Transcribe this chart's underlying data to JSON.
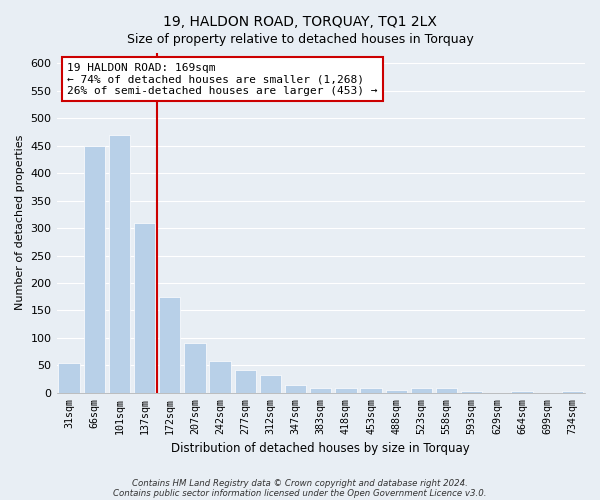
{
  "title": "19, HALDON ROAD, TORQUAY, TQ1 2LX",
  "subtitle": "Size of property relative to detached houses in Torquay",
  "xlabel": "Distribution of detached houses by size in Torquay",
  "ylabel": "Number of detached properties",
  "bar_labels": [
    "31sqm",
    "66sqm",
    "101sqm",
    "137sqm",
    "172sqm",
    "207sqm",
    "242sqm",
    "277sqm",
    "312sqm",
    "347sqm",
    "383sqm",
    "418sqm",
    "453sqm",
    "488sqm",
    "523sqm",
    "558sqm",
    "593sqm",
    "629sqm",
    "664sqm",
    "699sqm",
    "734sqm"
  ],
  "bar_values": [
    55,
    450,
    470,
    310,
    175,
    90,
    58,
    42,
    32,
    15,
    8,
    8,
    8,
    5,
    8,
    8,
    3,
    0,
    3,
    0,
    3
  ],
  "bar_color": "#b8d0e8",
  "bar_edge_color": "#b8d0e8",
  "vline_color": "#cc0000",
  "annotation_line1": "19 HALDON ROAD: 169sqm",
  "annotation_line2": "← 74% of detached houses are smaller (1,268)",
  "annotation_line3": "26% of semi-detached houses are larger (453) →",
  "annotation_box_color": "#ffffff",
  "annotation_box_edge": "#cc0000",
  "ylim": [
    0,
    620
  ],
  "yticks": [
    0,
    50,
    100,
    150,
    200,
    250,
    300,
    350,
    400,
    450,
    500,
    550,
    600
  ],
  "footnote1": "Contains HM Land Registry data © Crown copyright and database right 2024.",
  "footnote2": "Contains public sector information licensed under the Open Government Licence v3.0.",
  "bg_color": "#e8eef4",
  "plot_bg_color": "#e8eef4",
  "grid_color": "#ffffff",
  "title_fontsize": 10,
  "subtitle_fontsize": 9
}
